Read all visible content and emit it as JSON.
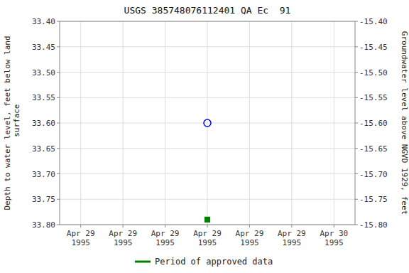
{
  "chart_data": {
    "type": "scatter",
    "title": "USGS 385748076112401 QA Ec  91",
    "y_label": "Depth to water level, feet below land\n surface",
    "y2_label": "Groundwater level above NGVD 1929, feet",
    "categories": [
      "Apr 29\n1995",
      "Apr 29\n1995",
      "Apr 29\n1995",
      "Apr 29\n1995",
      "Apr 29\n1995",
      "Apr 29\n1995",
      "Apr 30\n1995"
    ],
    "series": [
      {
        "color": "blue",
        "marker": "open_circle",
        "values": [
          null,
          null,
          null,
          33.6,
          null,
          null,
          null
        ]
      },
      {
        "name": "Period of approved data",
        "color": "green",
        "marker": "square",
        "values": [
          null,
          null,
          null,
          33.79,
          null,
          null,
          null
        ]
      }
    ],
    "ylim": [
      33.8,
      33.4
    ],
    "yticks": [
      {
        "value": 33.4,
        "label": "33.40"
      },
      33.45,
      {
        "value": 33.5,
        "label": "33.50"
      },
      33.55,
      {
        "value": 33.6,
        "label": "33.60"
      },
      33.65,
      {
        "value": 33.7,
        "label": "33.70"
      },
      33.75,
      {
        "value": 33.8,
        "label": "33.80"
      }
    ],
    "y2lim": [
      -15.8,
      -15.4
    ],
    "y2ticks": [
      {
        "value": -15.4,
        "label": "-15.40"
      },
      -15.45,
      {
        "value": -15.5,
        "label": "-15.50"
      },
      -15.55,
      {
        "value": -15.6,
        "label": "-15.60"
      },
      -15.65,
      {
        "value": -15.7,
        "label": "-15.70"
      },
      -15.75,
      {
        "value": -15.8,
        "label": "-15.80"
      }
    ],
    "grid": true,
    "legend": "bottom"
  }
}
